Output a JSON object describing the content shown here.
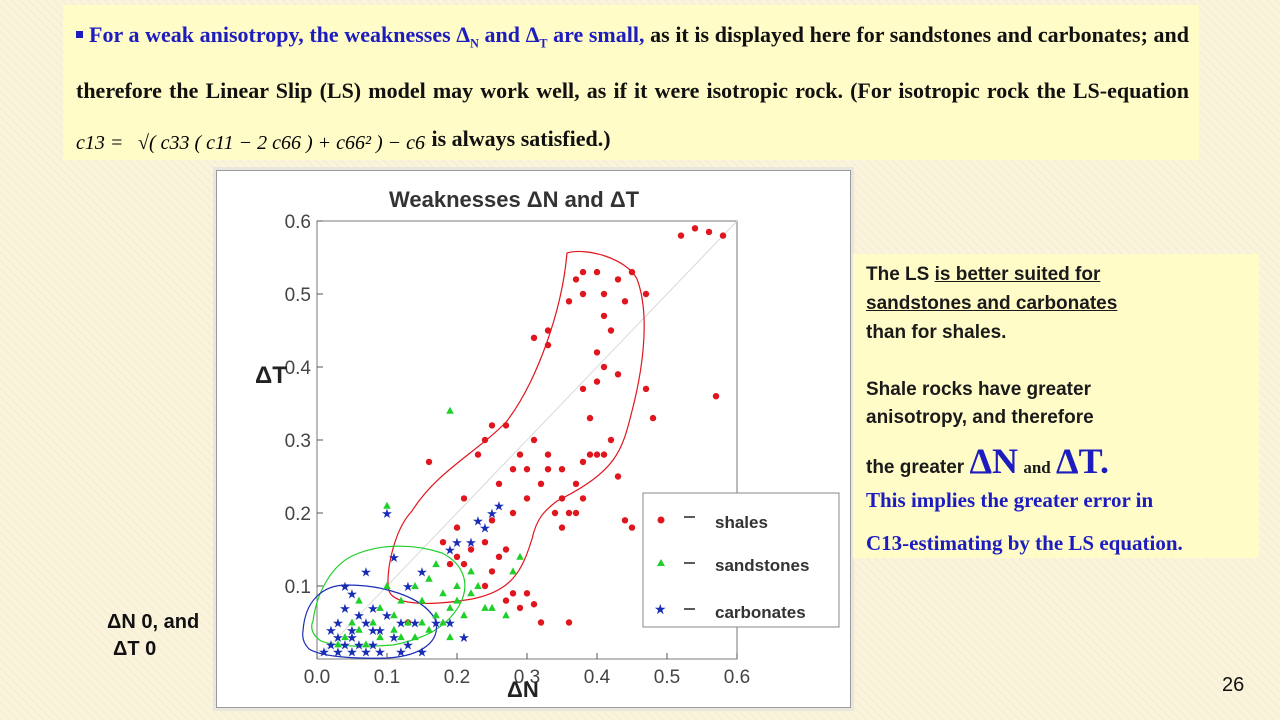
{
  "header_text": {
    "seg1": "For a weak anisotropy, the weaknesses Δ",
    "sub_n": "N",
    "seg2": " and Δ",
    "sub_t": "T",
    "seg3": " are small,",
    "seg4": " as it is displayed here for sandstones and carbonates; and therefore the Linear Slip (LS) model may work well, as if it were isotropic rock. (For isotropic rock the LS-equation",
    "seg5": "is always  satisfied.)"
  },
  "formula": {
    "lhs": "c13 =",
    "rhs": "√( c33 ( c11 − 2 c66 ) + c66² ) − c66"
  },
  "side_note": {
    "line1_plain": "The LS ",
    "line1_underlined": "is better suited for",
    "line2_underlined": "sandstones and carbonates",
    "line3": "than for shales.",
    "line4": "Shale rocks have greater",
    "line5": "anisotropy, and therefore",
    "line6_prefix": "the greater ",
    "delta_n": "ΔN",
    "and_word": "and",
    "delta_t": "ΔT.",
    "line7": "This implies the greater error in",
    "line8": "C13-estimating by the LS equation."
  },
  "limit_note": {
    "line1": "ΔN  0, and",
    "line2": "ΔT  0"
  },
  "page_number": "26",
  "colors": {
    "shales": "#e0161e",
    "sandstones": "#1fcf2a",
    "carbonates": "#1a2db5",
    "accent_text": "#1d1dbf"
  },
  "chart_data": {
    "type": "scatter",
    "title": "Weaknesses ΔN and ΔT",
    "xlabel": "ΔN",
    "ylabel": "ΔT",
    "xlim": [
      0,
      0.6
    ],
    "ylim": [
      0,
      0.6
    ],
    "xticks": [
      "0.0",
      "0.1",
      "0.2",
      "0.3",
      "0.4",
      "0.5",
      "0.6"
    ],
    "yticks": [
      "0.1",
      "0.2",
      "0.3",
      "0.4",
      "0.5",
      "0.6"
    ],
    "legend_position": "bottom-right",
    "legend": [
      "shales",
      "sandstones",
      "carbonates"
    ],
    "series": [
      {
        "name": "shales",
        "marker": "circle",
        "points": [
          [
            0.32,
            0.05
          ],
          [
            0.36,
            0.05
          ],
          [
            0.29,
            0.07
          ],
          [
            0.31,
            0.075
          ],
          [
            0.27,
            0.08
          ],
          [
            0.28,
            0.09
          ],
          [
            0.3,
            0.09
          ],
          [
            0.24,
            0.1
          ],
          [
            0.25,
            0.12
          ],
          [
            0.19,
            0.13
          ],
          [
            0.2,
            0.14
          ],
          [
            0.21,
            0.13
          ],
          [
            0.22,
            0.15
          ],
          [
            0.24,
            0.16
          ],
          [
            0.26,
            0.14
          ],
          [
            0.27,
            0.15
          ],
          [
            0.18,
            0.16
          ],
          [
            0.2,
            0.18
          ],
          [
            0.25,
            0.19
          ],
          [
            0.28,
            0.2
          ],
          [
            0.3,
            0.22
          ],
          [
            0.32,
            0.24
          ],
          [
            0.33,
            0.26
          ],
          [
            0.35,
            0.26
          ],
          [
            0.37,
            0.24
          ],
          [
            0.38,
            0.22
          ],
          [
            0.3,
            0.26
          ],
          [
            0.29,
            0.28
          ],
          [
            0.31,
            0.3
          ],
          [
            0.33,
            0.28
          ],
          [
            0.35,
            0.18
          ],
          [
            0.34,
            0.2
          ],
          [
            0.36,
            0.2
          ],
          [
            0.38,
            0.27
          ],
          [
            0.39,
            0.28
          ],
          [
            0.4,
            0.28
          ],
          [
            0.41,
            0.28
          ],
          [
            0.43,
            0.25
          ],
          [
            0.42,
            0.3
          ],
          [
            0.39,
            0.33
          ],
          [
            0.38,
            0.37
          ],
          [
            0.4,
            0.38
          ],
          [
            0.41,
            0.4
          ],
          [
            0.43,
            0.39
          ],
          [
            0.4,
            0.42
          ],
          [
            0.42,
            0.45
          ],
          [
            0.41,
            0.47
          ],
          [
            0.44,
            0.49
          ],
          [
            0.38,
            0.5
          ],
          [
            0.37,
            0.52
          ],
          [
            0.38,
            0.53
          ],
          [
            0.4,
            0.53
          ],
          [
            0.41,
            0.5
          ],
          [
            0.43,
            0.52
          ],
          [
            0.45,
            0.53
          ],
          [
            0.47,
            0.5
          ],
          [
            0.36,
            0.49
          ],
          [
            0.33,
            0.45
          ],
          [
            0.31,
            0.44
          ],
          [
            0.33,
            0.43
          ],
          [
            0.27,
            0.32
          ],
          [
            0.25,
            0.32
          ],
          [
            0.24,
            0.3
          ],
          [
            0.23,
            0.28
          ],
          [
            0.21,
            0.22
          ],
          [
            0.26,
            0.24
          ],
          [
            0.28,
            0.26
          ],
          [
            0.35,
            0.22
          ],
          [
            0.37,
            0.2
          ],
          [
            0.48,
            0.33
          ],
          [
            0.16,
            0.27
          ],
          [
            0.13,
            0.05
          ],
          [
            0.44,
            0.19
          ],
          [
            0.45,
            0.18
          ],
          [
            0.57,
            0.36
          ],
          [
            0.52,
            0.58
          ],
          [
            0.54,
            0.59
          ],
          [
            0.56,
            0.585
          ],
          [
            0.58,
            0.58
          ],
          [
            0.47,
            0.37
          ]
        ]
      },
      {
        "name": "sandstones",
        "marker": "triangle",
        "points": [
          [
            0.1,
            0.21
          ],
          [
            0.19,
            0.34
          ],
          [
            0.14,
            0.1
          ],
          [
            0.16,
            0.11
          ],
          [
            0.18,
            0.09
          ],
          [
            0.2,
            0.1
          ],
          [
            0.22,
            0.09
          ],
          [
            0.24,
            0.07
          ],
          [
            0.21,
            0.06
          ],
          [
            0.19,
            0.07
          ],
          [
            0.17,
            0.06
          ],
          [
            0.15,
            0.05
          ],
          [
            0.13,
            0.05
          ],
          [
            0.11,
            0.06
          ],
          [
            0.09,
            0.07
          ],
          [
            0.08,
            0.05
          ],
          [
            0.06,
            0.04
          ],
          [
            0.05,
            0.05
          ],
          [
            0.04,
            0.03
          ],
          [
            0.07,
            0.02
          ],
          [
            0.09,
            0.03
          ],
          [
            0.12,
            0.03
          ],
          [
            0.14,
            0.03
          ],
          [
            0.16,
            0.04
          ],
          [
            0.18,
            0.05
          ],
          [
            0.2,
            0.08
          ],
          [
            0.23,
            0.1
          ],
          [
            0.25,
            0.07
          ],
          [
            0.27,
            0.06
          ],
          [
            0.28,
            0.12
          ],
          [
            0.29,
            0.14
          ],
          [
            0.12,
            0.08
          ],
          [
            0.1,
            0.1
          ],
          [
            0.15,
            0.08
          ],
          [
            0.17,
            0.13
          ],
          [
            0.22,
            0.12
          ],
          [
            0.06,
            0.08
          ],
          [
            0.03,
            0.02
          ],
          [
            0.11,
            0.04
          ],
          [
            0.19,
            0.03
          ]
        ]
      },
      {
        "name": "carbonates",
        "marker": "star",
        "points": [
          [
            0.1,
            0.2
          ],
          [
            0.01,
            0.01
          ],
          [
            0.02,
            0.02
          ],
          [
            0.03,
            0.01
          ],
          [
            0.04,
            0.02
          ],
          [
            0.05,
            0.01
          ],
          [
            0.06,
            0.02
          ],
          [
            0.07,
            0.01
          ],
          [
            0.08,
            0.02
          ],
          [
            0.09,
            0.01
          ],
          [
            0.02,
            0.04
          ],
          [
            0.03,
            0.05
          ],
          [
            0.05,
            0.04
          ],
          [
            0.07,
            0.05
          ],
          [
            0.09,
            0.04
          ],
          [
            0.11,
            0.03
          ],
          [
            0.13,
            0.02
          ],
          [
            0.15,
            0.01
          ],
          [
            0.12,
            0.05
          ],
          [
            0.1,
            0.06
          ],
          [
            0.08,
            0.07
          ],
          [
            0.06,
            0.06
          ],
          [
            0.04,
            0.07
          ],
          [
            0.05,
            0.09
          ],
          [
            0.04,
            0.1
          ],
          [
            0.07,
            0.12
          ],
          [
            0.11,
            0.14
          ],
          [
            0.13,
            0.1
          ],
          [
            0.15,
            0.12
          ],
          [
            0.17,
            0.05
          ],
          [
            0.19,
            0.05
          ],
          [
            0.21,
            0.03
          ],
          [
            0.25,
            0.2
          ],
          [
            0.26,
            0.21
          ],
          [
            0.24,
            0.18
          ],
          [
            0.22,
            0.16
          ],
          [
            0.2,
            0.16
          ],
          [
            0.23,
            0.19
          ],
          [
            0.19,
            0.15
          ],
          [
            0.05,
            0.03
          ],
          [
            0.08,
            0.04
          ],
          [
            0.12,
            0.01
          ],
          [
            0.14,
            0.05
          ],
          [
            0.03,
            0.03
          ]
        ]
      }
    ]
  }
}
